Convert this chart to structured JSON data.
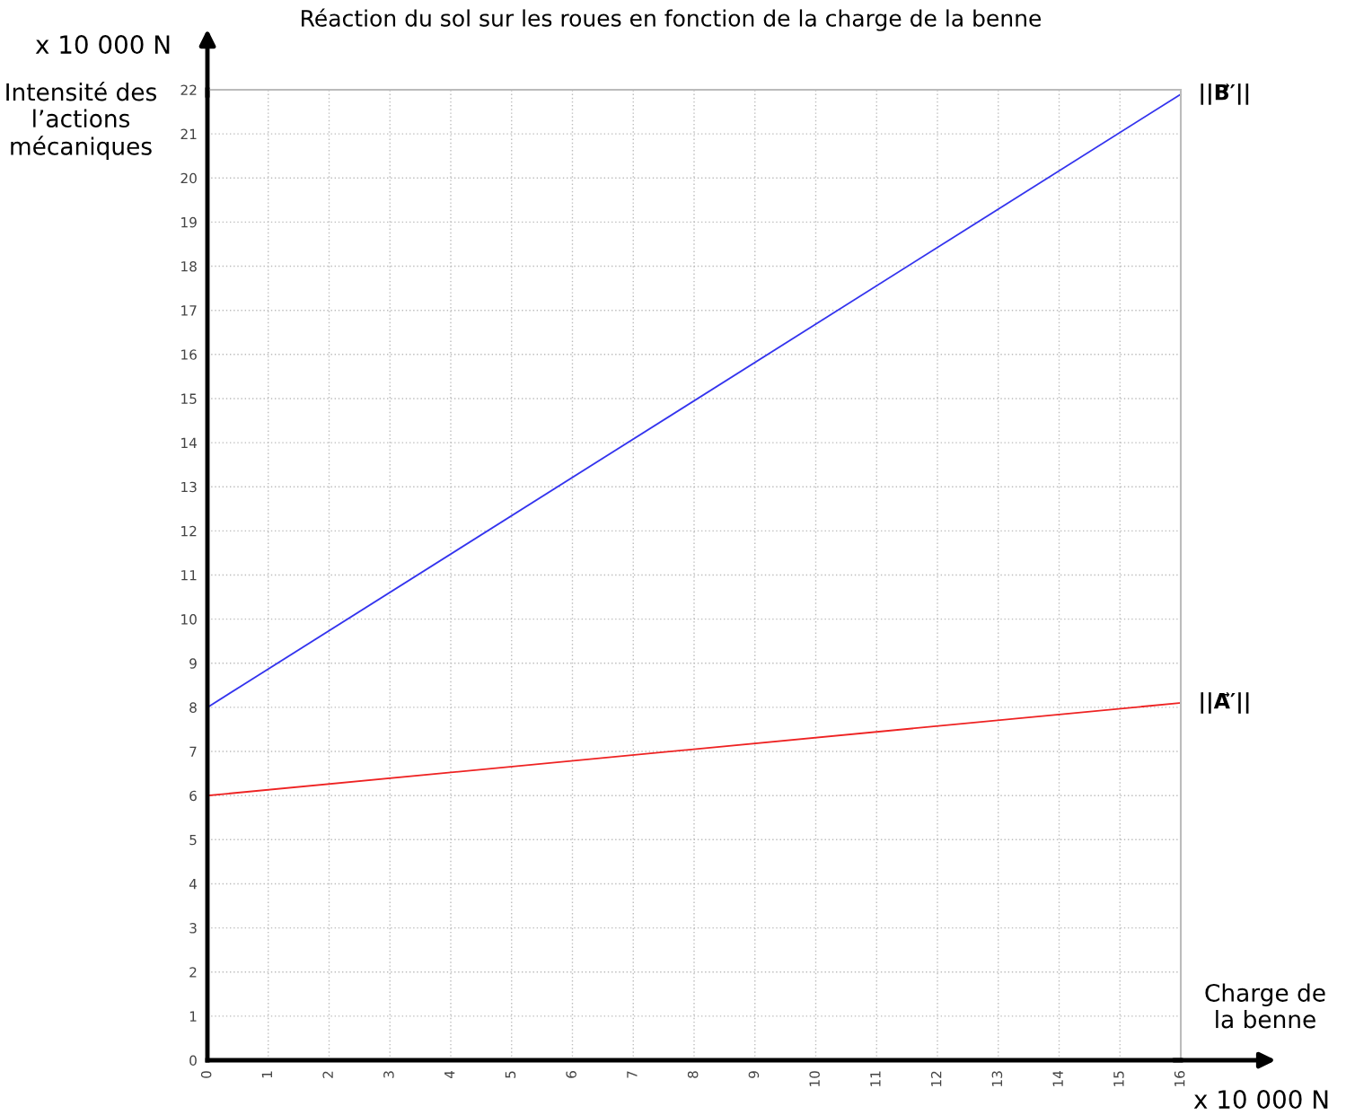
{
  "chart_data": {
    "type": "line",
    "title": "Réaction du sol sur les roues en fonction de la charge de la benne",
    "xlabel": "Charge de\nla benne",
    "ylabel": "Intensité des\nl’actions\nmécaniques",
    "annotations": [
      "x 10 000 N",
      "x 10 000 N"
    ],
    "x": [
      0,
      16
    ],
    "series": [
      {
        "name": "||B⃗′||",
        "color": "#3333ee",
        "values": [
          8,
          21.9
        ]
      },
      {
        "name": "||A⃗′||",
        "color": "#ee2222",
        "values": [
          6,
          8.1
        ]
      }
    ],
    "xlim": [
      0,
      16
    ],
    "xticks": [
      0,
      1,
      2,
      3,
      4,
      5,
      6,
      7,
      8,
      9,
      10,
      11,
      12,
      13,
      14,
      15,
      16
    ],
    "ylim": [
      0,
      22
    ],
    "yticks": [
      0,
      1,
      2,
      3,
      4,
      5,
      6,
      7,
      8,
      9,
      10,
      11,
      12,
      13,
      14,
      15,
      16,
      17,
      18,
      19,
      20,
      21,
      22
    ],
    "grid": true,
    "marker": "none",
    "line_style": "solid"
  }
}
